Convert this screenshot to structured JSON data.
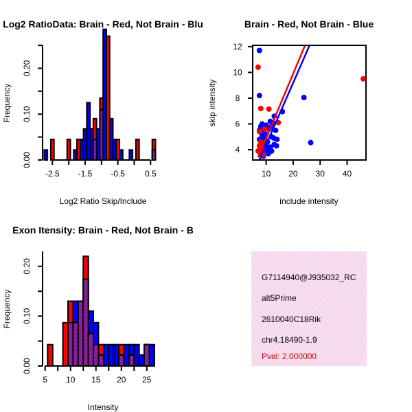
{
  "chart_data": [
    {
      "type": "bar",
      "title": "Log2 RatioData: Brain - Red, Not Brain - Blu",
      "xlabel": "Log2 Ratio Skip/Include",
      "ylabel": "Frequency",
      "xlim": [
        -2.8,
        0.85
      ],
      "ylim": [
        0,
        0.25
      ],
      "xticks": [
        "-2.5",
        "-1.5",
        "-0.5",
        "0.5"
      ],
      "yticks": [
        "0.00",
        "0.10",
        "0.20"
      ],
      "bin_width": 0.1,
      "series": [
        {
          "name": "Not Brain",
          "color": "#0000ff",
          "bins": [
            {
              "x": -2.7,
              "y": 0.022
            },
            {
              "x": -1.8,
              "y": 0.022
            },
            {
              "x": -1.6,
              "y": 0.045
            },
            {
              "x": -1.5,
              "y": 0.068
            },
            {
              "x": -1.4,
              "y": 0.125
            },
            {
              "x": -1.3,
              "y": 0.068
            },
            {
              "x": -1.2,
              "y": 0.045
            },
            {
              "x": -1.1,
              "y": 0.068
            },
            {
              "x": -1.0,
              "y": 0.11
            },
            {
              "x": -0.9,
              "y": 0.285
            },
            {
              "x": -0.7,
              "y": 0.09
            },
            {
              "x": -0.6,
              "y": 0.045
            },
            {
              "x": -0.4,
              "y": 0.022
            },
            {
              "x": -0.1,
              "y": 0.022
            },
            {
              "x": 0.6,
              "y": 0.022
            }
          ]
        },
        {
          "name": "Brain",
          "color": "#ff0000",
          "bins": [
            {
              "x": -2.5,
              "y": 0.045
            },
            {
              "x": -2.0,
              "y": 0.045
            },
            {
              "x": -1.7,
              "y": 0.045
            },
            {
              "x": -1.2,
              "y": 0.09
            },
            {
              "x": -1.0,
              "y": 0.135
            },
            {
              "x": -0.8,
              "y": 0.27
            },
            {
              "x": -0.5,
              "y": 0.045
            },
            {
              "x": 0.1,
              "y": 0.045
            },
            {
              "x": 0.6,
              "y": 0.045
            }
          ]
        }
      ]
    },
    {
      "type": "scatter",
      "title": "Brain - Red, Not Brain - Blue",
      "xlabel": "include intensity",
      "ylabel": "skip intensity",
      "xlim": [
        5,
        47
      ],
      "ylim": [
        3.2,
        12.1
      ],
      "xticks": [
        "10",
        "20",
        "30",
        "40"
      ],
      "yticks": [
        "4",
        "6",
        "8",
        "10",
        "12"
      ],
      "series": [
        {
          "name": "Not Brain",
          "color": "#0000ff",
          "points": [
            [
              7.5,
              11.7
            ],
            [
              7.5,
              8.2
            ],
            [
              24,
              8.05
            ],
            [
              26.5,
              4.55
            ],
            [
              16,
              6.95
            ],
            [
              13,
              6.6
            ],
            [
              7.5,
              5.5
            ],
            [
              8,
              5.8
            ],
            [
              8.5,
              6.0
            ],
            [
              9,
              5.3
            ],
            [
              9.5,
              4.9
            ],
            [
              10,
              5.9
            ],
            [
              10.5,
              4.6
            ],
            [
              11,
              5.6
            ],
            [
              11.5,
              4.2
            ],
            [
              12,
              5.0
            ],
            [
              12.5,
              6.1
            ],
            [
              13,
              4.4
            ],
            [
              13.5,
              5.5
            ],
            [
              14,
              4.8
            ],
            [
              8,
              4.2
            ],
            [
              8.5,
              3.9
            ],
            [
              9,
              4.5
            ],
            [
              9.5,
              4.0
            ],
            [
              10,
              4.3
            ],
            [
              10.5,
              3.8
            ],
            [
              11,
              4.1
            ],
            [
              12,
              3.9
            ],
            [
              7.5,
              4.8
            ],
            [
              8,
              3.6
            ],
            [
              9,
              3.5
            ],
            [
              8.5,
              5.1
            ],
            [
              10,
              5.2
            ],
            [
              11.5,
              6.2
            ],
            [
              12,
              5.8
            ],
            [
              7.8,
              3.8
            ],
            [
              10.8,
              3.7
            ],
            [
              9.2,
              4.9
            ],
            [
              12.8,
              4.9
            ],
            [
              13.8,
              4.3
            ]
          ]
        },
        {
          "name": "Brain",
          "color": "#ff0000",
          "points": [
            [
              46,
              9.5
            ],
            [
              7,
              10.4
            ],
            [
              8,
              7.2
            ],
            [
              11,
              7.15
            ],
            [
              14.5,
              6.1
            ],
            [
              7.5,
              5.4
            ],
            [
              8,
              4.6
            ],
            [
              8.5,
              4.0
            ],
            [
              9.5,
              5.6
            ],
            [
              7,
              3.9
            ],
            [
              9,
              3.6
            ],
            [
              7.5,
              4.3
            ]
          ]
        }
      ],
      "fit_lines": [
        {
          "name": "Brain fit",
          "color": "#ff0000",
          "x": [
            7,
            25
          ],
          "y": [
            3.4,
            12.4
          ]
        },
        {
          "name": "Not Brain fit",
          "color": "#0000ff",
          "x": [
            7.5,
            26.5
          ],
          "y": [
            3.2,
            12.3
          ]
        }
      ]
    },
    {
      "type": "bar",
      "title": "Exon Itensity: Brain - Red, Not Brain - B",
      "xlabel": "Intensity",
      "ylabel": "Frequency",
      "xlim": [
        4.5,
        28
      ],
      "ylim": [
        0,
        0.23
      ],
      "xticks": [
        "5",
        "10",
        "15",
        "20",
        "25"
      ],
      "yticks": [
        "0.00",
        "0.10",
        "0.20"
      ],
      "bin_width": 1,
      "series": [
        {
          "name": "Not Brain",
          "color": "#0000ff",
          "bins": [
            {
              "x": 10,
              "y": 0.087
            },
            {
              "x": 11,
              "y": 0.13
            },
            {
              "x": 12,
              "y": 0.13
            },
            {
              "x": 13,
              "y": 0.174
            },
            {
              "x": 14,
              "y": 0.11
            },
            {
              "x": 15,
              "y": 0.087
            },
            {
              "x": 16,
              "y": 0.022
            },
            {
              "x": 17,
              "y": 0.043
            },
            {
              "x": 18,
              "y": 0.043
            },
            {
              "x": 19,
              "y": 0.043
            },
            {
              "x": 20,
              "y": 0.022
            },
            {
              "x": 21,
              "y": 0.043
            },
            {
              "x": 22,
              "y": 0.043
            },
            {
              "x": 23,
              "y": 0.043
            },
            {
              "x": 24,
              "y": 0.022
            },
            {
              "x": 25,
              "y": 0.043
            },
            {
              "x": 26,
              "y": 0.043
            }
          ]
        },
        {
          "name": "Brain",
          "color": "#ff0000",
          "bins": [
            {
              "x": 6,
              "y": 0.043
            },
            {
              "x": 9,
              "y": 0.087
            },
            {
              "x": 10,
              "y": 0.13
            },
            {
              "x": 11,
              "y": 0.087
            },
            {
              "x": 12,
              "y": 0.13
            },
            {
              "x": 13,
              "y": 0.22
            },
            {
              "x": 14,
              "y": 0.065
            },
            {
              "x": 15,
              "y": 0.043
            },
            {
              "x": 16,
              "y": 0.043
            },
            {
              "x": 20,
              "y": 0.043
            },
            {
              "x": 22,
              "y": 0.022
            },
            {
              "x": 25,
              "y": 0.043
            }
          ]
        }
      ]
    }
  ],
  "info_panel": {
    "background": "#f6dcee",
    "lines": [
      "G7114940@J935032_RC",
      "alt5Prime",
      "2610040C18Rik",
      "chr4.18490-1.9"
    ],
    "pval": "Pval: 2.000000",
    "pval_color": "#cc0000"
  }
}
